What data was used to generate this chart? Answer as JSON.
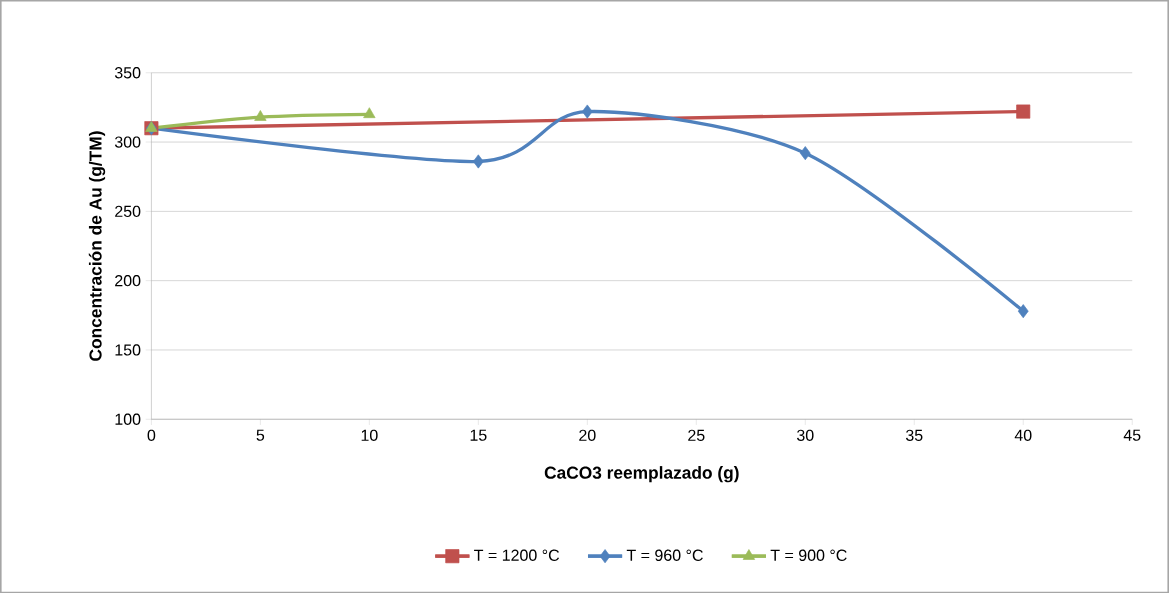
{
  "chart_data": {
    "type": "line",
    "xlabel": "CaCO3 reemplazado (g)",
    "ylabel": "Concentración de Au  (g/TM)",
    "xlim": [
      0,
      45
    ],
    "xticks": [
      0,
      5,
      10,
      15,
      20,
      25,
      30,
      35,
      40,
      45
    ],
    "ylim": [
      100,
      350
    ],
    "yticks": [
      100,
      150,
      200,
      250,
      300,
      350
    ],
    "grid": "y",
    "legend": "bottom",
    "line_style": "solid",
    "series": [
      {
        "name": "T = 1200 °C",
        "color": "#c0504d",
        "marker": "square",
        "x": [
          0,
          40
        ],
        "values": [
          310,
          322
        ]
      },
      {
        "name": "T = 960 °C",
        "color": "#4f81bd",
        "marker": "diamond",
        "x": [
          0,
          15,
          20,
          30,
          40
        ],
        "values": [
          310,
          286,
          322,
          292,
          178
        ]
      },
      {
        "name": "T = 900 °C",
        "color": "#9bbb59",
        "marker": "triangle",
        "x": [
          0,
          5,
          10
        ],
        "values": [
          310,
          318,
          320
        ]
      }
    ]
  }
}
